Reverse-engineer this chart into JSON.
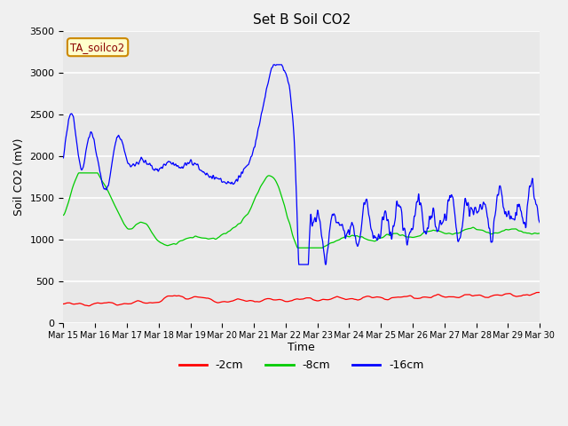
{
  "title": "Set B Soil CO2",
  "ylabel": "Soil CO2 (mV)",
  "xlabel": "Time",
  "annotation": "TA_soilco2",
  "ylim": [
    0,
    3500
  ],
  "legend_labels": [
    "-2cm",
    "-8cm",
    "-16cm"
  ],
  "legend_colors": [
    "#ff0000",
    "#00cc00",
    "#0000ff"
  ],
  "fig_facecolor": "#f0f0f0",
  "ax_facecolor": "#e8e8e8",
  "xtick_labels": [
    "Mar 15",
    "Mar 16",
    "Mar 17",
    "Mar 18",
    "Mar 19",
    "Mar 20",
    "Mar 21",
    "Mar 22",
    "Mar 23",
    "Mar 24",
    "Mar 25",
    "Mar 26",
    "Mar 27",
    "Mar 28",
    "Mar 29",
    "Mar 30"
  ],
  "n_points": 1500
}
